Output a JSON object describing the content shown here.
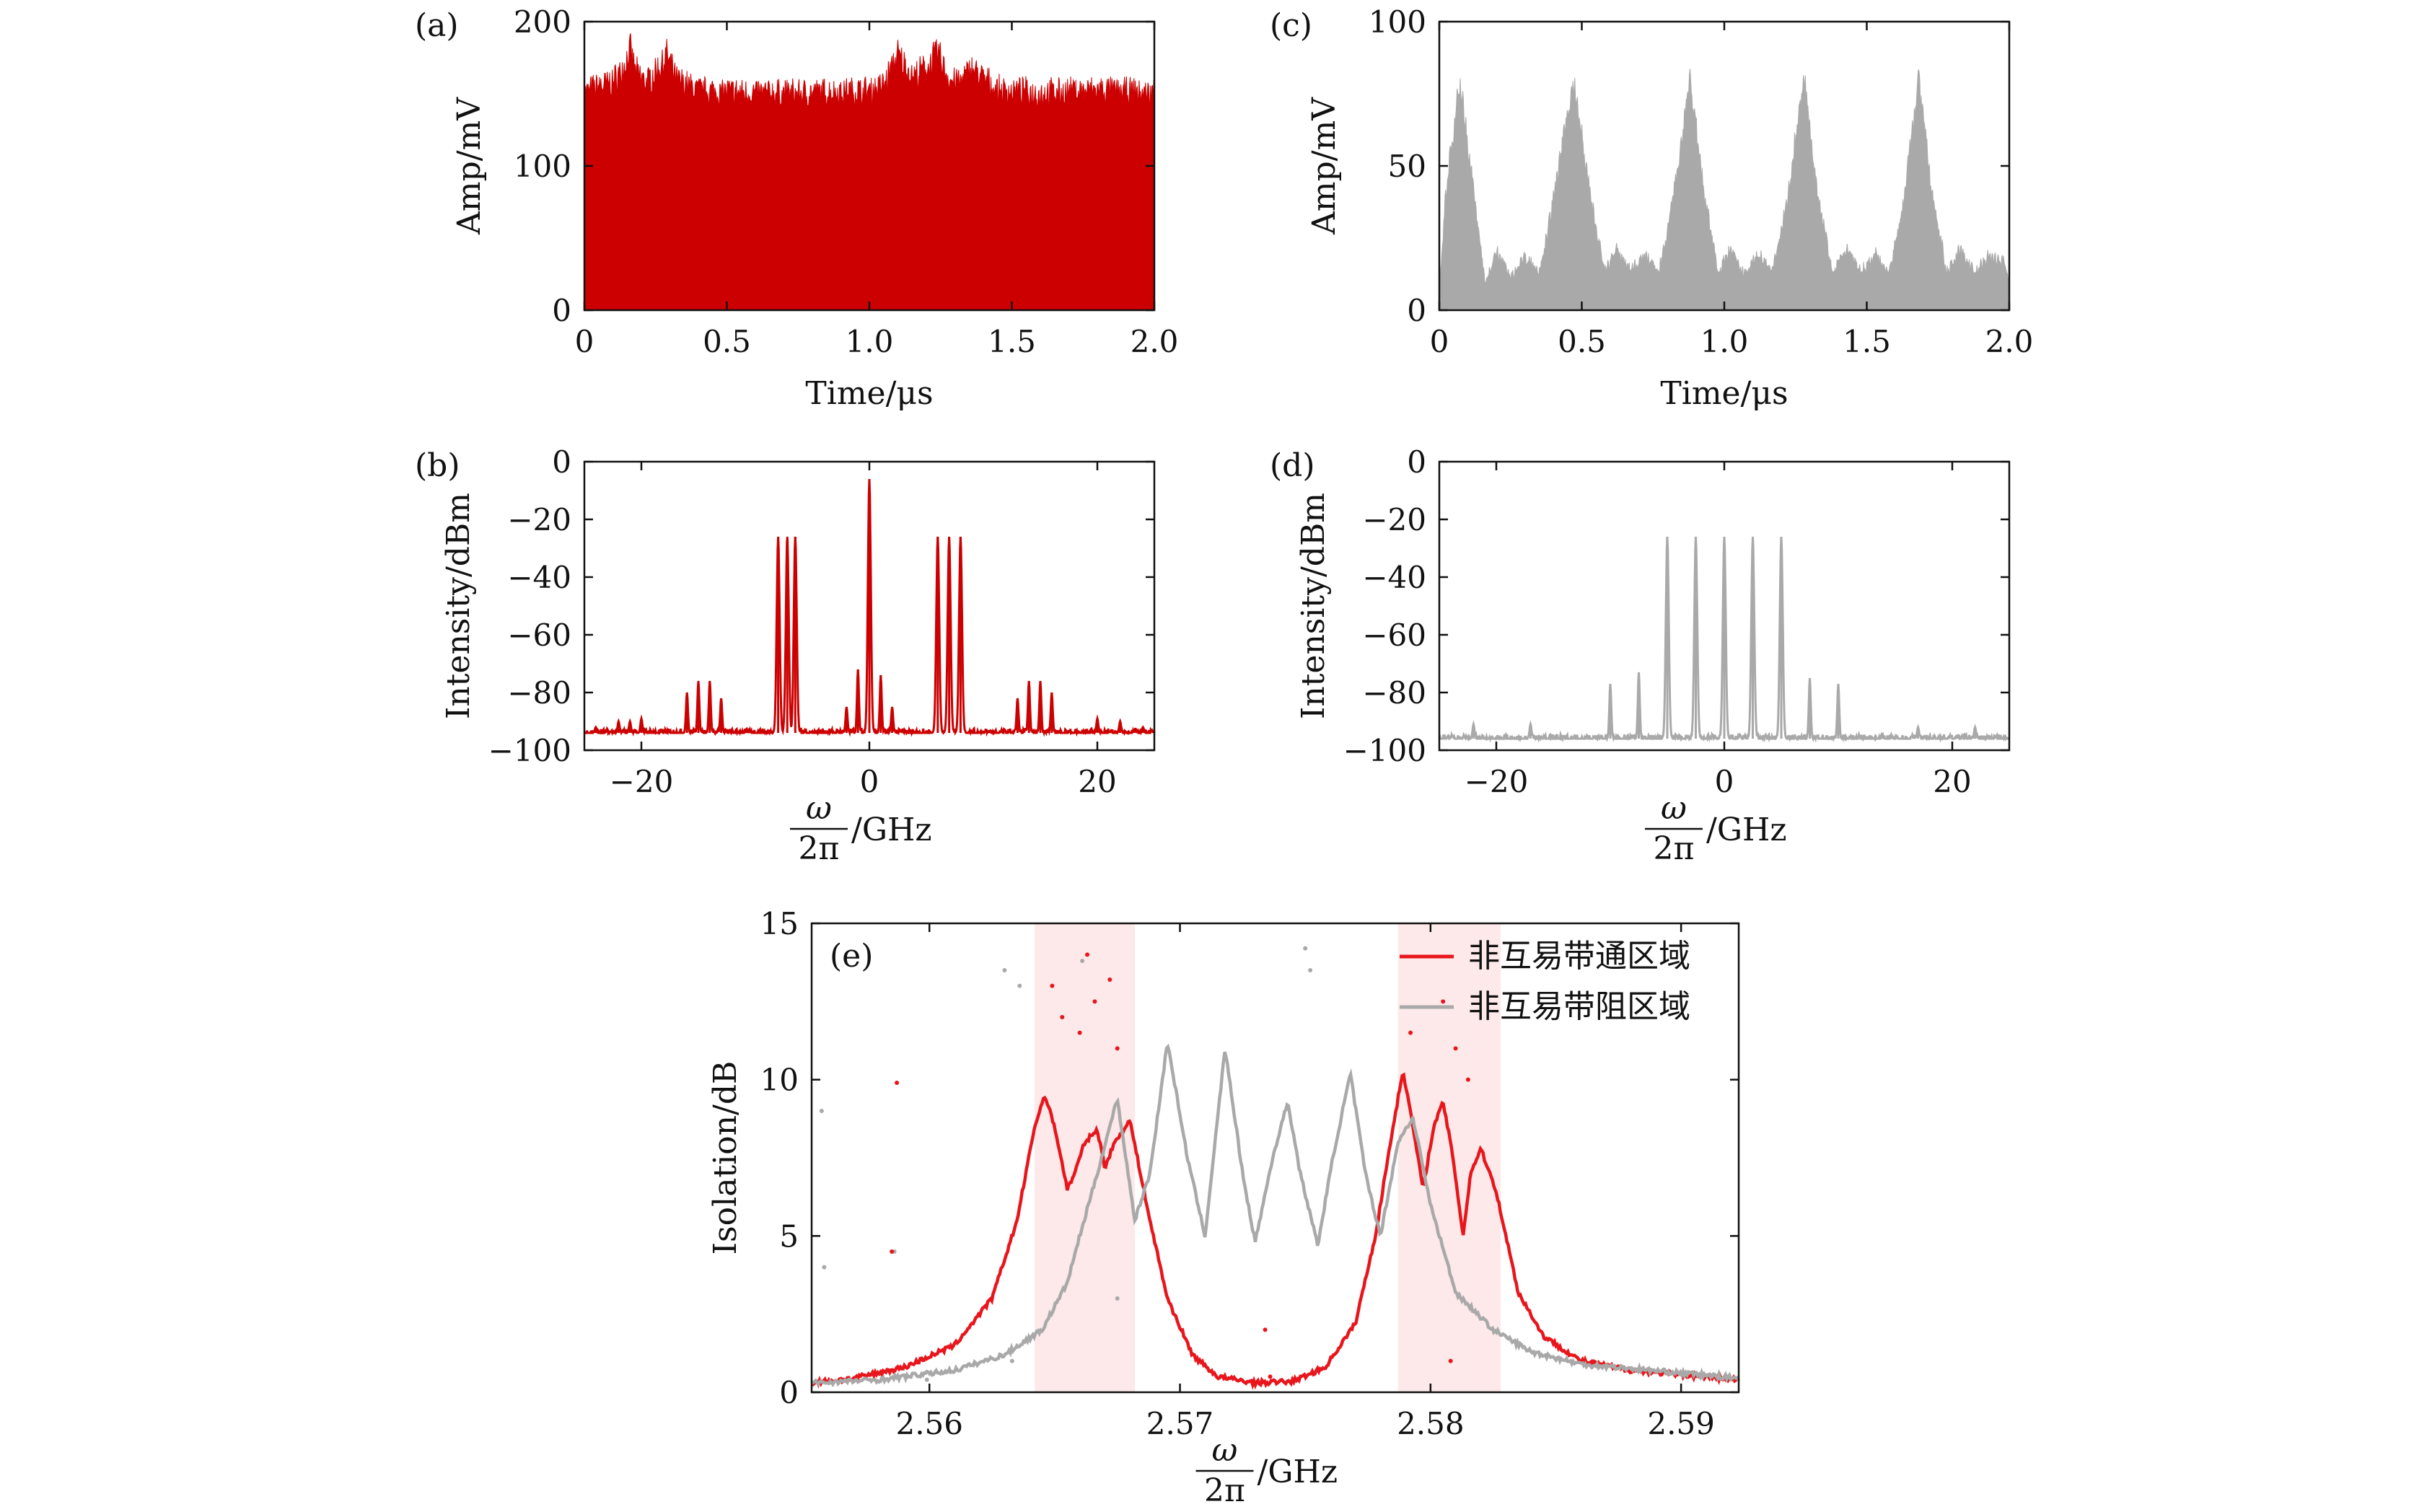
{
  "colors": {
    "red": "#cc0000",
    "red_line": "#e8161c",
    "gray": "#a9a9a9",
    "band": "#fde9e9"
  },
  "chart_data": [
    {
      "id": "a",
      "panel_label": "(a)",
      "type": "area",
      "xlabel": "Time/μs",
      "ylabel": "Amp/mV",
      "xlim": [
        0,
        2.0
      ],
      "ylim": [
        0,
        200
      ],
      "xticks": [
        0,
        0.5,
        1.0,
        1.5,
        2.0
      ],
      "xtick_labels": [
        "0",
        "0.5",
        "1.0",
        "1.5",
        "2.0"
      ],
      "yticks": [
        0,
        100,
        200
      ],
      "ytick_labels": [
        "0",
        "100",
        "200"
      ],
      "color": "#cc0000",
      "x": [
        0.0,
        0.05,
        0.1,
        0.14,
        0.16,
        0.18,
        0.22,
        0.26,
        0.29,
        0.32,
        0.4,
        0.6,
        0.8,
        1.0,
        1.05,
        1.1,
        1.15,
        1.2,
        1.24,
        1.28,
        1.32,
        1.36,
        1.45,
        1.6,
        1.8,
        1.98
      ],
      "y": [
        160,
        165,
        168,
        180,
        192,
        175,
        168,
        178,
        188,
        170,
        162,
        160,
        160,
        162,
        166,
        188,
        172,
        178,
        190,
        170,
        168,
        178,
        162,
        160,
        162,
        160
      ]
    },
    {
      "id": "b",
      "panel_label": "(b)",
      "type": "line",
      "xlabel_num": "ω",
      "xlabel_den": "2π",
      "xlabel_unit": "/GHz",
      "ylabel": "Intensity/dBm",
      "xlim": [
        -25,
        25
      ],
      "ylim": [
        -100,
        0
      ],
      "xticks": [
        -20,
        0,
        20
      ],
      "xtick_labels": [
        "−20",
        "0",
        "20"
      ],
      "yticks": [
        0,
        -20,
        -40,
        -60,
        -80,
        -100
      ],
      "ytick_labels": [
        "0",
        "−20",
        "−40",
        "−60",
        "−80",
        "−100"
      ],
      "color": "#cc0000",
      "noise_floor": -94,
      "peaks": [
        {
          "x": -24,
          "y": -92
        },
        {
          "x": -22,
          "y": -90
        },
        {
          "x": -21,
          "y": -90
        },
        {
          "x": -20,
          "y": -89
        },
        {
          "x": -16,
          "y": -80
        },
        {
          "x": -15,
          "y": -76
        },
        {
          "x": -14,
          "y": -76
        },
        {
          "x": -13,
          "y": -82
        },
        {
          "x": -8,
          "y": -26
        },
        {
          "x": -7.2,
          "y": -26
        },
        {
          "x": -6.5,
          "y": -26
        },
        {
          "x": -2,
          "y": -85
        },
        {
          "x": -1,
          "y": -72
        },
        {
          "x": 0,
          "y": -6
        },
        {
          "x": 1,
          "y": -74
        },
        {
          "x": 2,
          "y": -85
        },
        {
          "x": 6,
          "y": -26
        },
        {
          "x": 7,
          "y": -26
        },
        {
          "x": 8,
          "y": -26
        },
        {
          "x": 13,
          "y": -82
        },
        {
          "x": 14,
          "y": -76
        },
        {
          "x": 15,
          "y": -76
        },
        {
          "x": 16,
          "y": -80
        },
        {
          "x": 20,
          "y": -89
        },
        {
          "x": 22,
          "y": -90
        },
        {
          "x": 24,
          "y": -92
        }
      ]
    },
    {
      "id": "c",
      "panel_label": "(c)",
      "type": "area",
      "xlabel": "Time/μs",
      "ylabel": "Amp/mV",
      "xlim": [
        0,
        2.0
      ],
      "ylim": [
        0,
        100
      ],
      "xticks": [
        0,
        0.5,
        1.0,
        1.5,
        2.0
      ],
      "xtick_labels": [
        "0",
        "0.5",
        "1.0",
        "1.5",
        "2.0"
      ],
      "yticks": [
        0,
        50,
        100
      ],
      "ytick_labels": [
        "0",
        "50",
        "100"
      ],
      "color": "#a9a9a9",
      "x": [
        0.0,
        0.02,
        0.07,
        0.12,
        0.16,
        0.2,
        0.25,
        0.3,
        0.35,
        0.4,
        0.47,
        0.53,
        0.58,
        0.62,
        0.67,
        0.72,
        0.77,
        0.82,
        0.88,
        0.93,
        0.98,
        1.02,
        1.07,
        1.12,
        1.17,
        1.22,
        1.28,
        1.33,
        1.38,
        1.43,
        1.48,
        1.53,
        1.58,
        1.63,
        1.68,
        1.73,
        1.78,
        1.83,
        1.88,
        1.93,
        1.98,
        2.0
      ],
      "y": [
        5,
        40,
        85,
        45,
        10,
        22,
        12,
        20,
        14,
        40,
        85,
        42,
        14,
        22,
        15,
        20,
        14,
        40,
        86,
        42,
        14,
        22,
        14,
        20,
        14,
        40,
        86,
        42,
        14,
        22,
        14,
        20,
        14,
        40,
        86,
        42,
        14,
        22,
        14,
        20,
        18,
        12
      ]
    },
    {
      "id": "d",
      "panel_label": "(d)",
      "type": "line",
      "xlabel_num": "ω",
      "xlabel_den": "2π",
      "xlabel_unit": "/GHz",
      "ylabel": "Intensity/dBm",
      "xlim": [
        -25,
        25
      ],
      "ylim": [
        -100,
        0
      ],
      "xticks": [
        -20,
        0,
        20
      ],
      "xtick_labels": [
        "−20",
        "0",
        "20"
      ],
      "yticks": [
        0,
        -20,
        -40,
        -60,
        -80,
        -100
      ],
      "ytick_labels": [
        "0",
        "−20",
        "−40",
        "−60",
        "−80",
        "−100"
      ],
      "color": "#a9a9a9",
      "noise_floor": -96,
      "peaks": [
        {
          "x": -22,
          "y": -91
        },
        {
          "x": -17,
          "y": -91
        },
        {
          "x": -10,
          "y": -77
        },
        {
          "x": -7.5,
          "y": -73
        },
        {
          "x": -5,
          "y": -26
        },
        {
          "x": -2.5,
          "y": -26
        },
        {
          "x": 0,
          "y": -26
        },
        {
          "x": 2.5,
          "y": -26
        },
        {
          "x": 5,
          "y": -26
        },
        {
          "x": 7.5,
          "y": -75
        },
        {
          "x": 10,
          "y": -77
        },
        {
          "x": 17,
          "y": -92
        },
        {
          "x": 22,
          "y": -92
        }
      ]
    },
    {
      "id": "e",
      "panel_label": "(e)",
      "type": "line",
      "xlabel_num": "ω",
      "xlabel_den": "2π",
      "xlabel_unit": "/GHz",
      "ylabel": "Isolation/dB",
      "xlim": [
        2.5553,
        2.5923
      ],
      "ylim": [
        0,
        15
      ],
      "xticks": [
        2.56,
        2.57,
        2.58,
        2.59
      ],
      "xtick_labels": [
        "2.56",
        "2.57",
        "2.58",
        "2.59"
      ],
      "yticks": [
        0,
        5,
        10,
        15
      ],
      "ytick_labels": [
        "0",
        "5",
        "10",
        "15"
      ],
      "bands": [
        [
          2.5642,
          2.5682
        ],
        [
          2.5787,
          2.5828
        ]
      ],
      "legend": {
        "position": "top-right"
      },
      "series": [
        {
          "name": "非互易带通区域",
          "color": "#e8161c",
          "x": [
            2.5553,
            2.557,
            2.559,
            2.561,
            2.5625,
            2.5635,
            2.5642,
            2.5646,
            2.565,
            2.5655,
            2.5658,
            2.5662,
            2.5667,
            2.567,
            2.5674,
            2.568,
            2.5688,
            2.5695,
            2.5705,
            2.5715,
            2.573,
            2.5745,
            2.5758,
            2.577,
            2.5778,
            2.5784,
            2.5789,
            2.5793,
            2.5797,
            2.5801,
            2.5805,
            2.5809,
            2.5813,
            2.5816,
            2.582,
            2.5826,
            2.5835,
            2.5845,
            2.586,
            2.588,
            2.5923
          ],
          "y": [
            0.3,
            0.45,
            0.8,
            1.5,
            3.0,
            5.5,
            8.5,
            9.5,
            8.5,
            6.5,
            7.0,
            8.0,
            8.4,
            7.2,
            8.0,
            8.7,
            5.5,
            3.0,
            1.2,
            0.5,
            0.3,
            0.35,
            0.8,
            2.2,
            5.0,
            8.0,
            10.3,
            8.5,
            6.5,
            8.4,
            9.3,
            7.5,
            5.0,
            7.0,
            7.8,
            6.5,
            3.2,
            1.8,
            1.0,
            0.7,
            0.4
          ]
        },
        {
          "name": "非互易带阻区域",
          "color": "#a9a9a9",
          "x": [
            2.5553,
            2.558,
            2.561,
            2.563,
            2.5645,
            2.5655,
            2.566,
            2.5667,
            2.5675,
            2.5682,
            2.5688,
            2.5695,
            2.5703,
            2.571,
            2.5718,
            2.5725,
            2.573,
            2.5737,
            2.5743,
            2.5748,
            2.5755,
            2.5761,
            2.5768,
            2.5774,
            2.578,
            2.5787,
            2.5793,
            2.58,
            2.581,
            2.5825,
            2.584,
            2.586,
            2.5923
          ],
          "y": [
            0.3,
            0.4,
            0.7,
            1.2,
            2.0,
            3.5,
            5.0,
            7.0,
            9.4,
            5.5,
            7.0,
            11.2,
            7.5,
            5.0,
            11.0,
            7.0,
            4.8,
            7.5,
            9.3,
            7.0,
            4.7,
            7.5,
            10.2,
            7.0,
            5.0,
            8.0,
            8.8,
            6.0,
            3.2,
            2.0,
            1.3,
            0.9,
            0.45
          ]
        }
      ],
      "scatter": [
        {
          "color": "#a9a9a9",
          "x": [
            2.5557,
            2.5558,
            2.5586,
            2.563,
            2.5633,
            2.5636,
            2.5661,
            2.575,
            2.5752,
            2.5675,
            2.5599
          ],
          "y": [
            9.0,
            4.0,
            4.5,
            13.5,
            1.0,
            13.0,
            13.8,
            14.2,
            13.5,
            3.0,
            0.4
          ]
        },
        {
          "color": "#e8161c",
          "x": [
            2.5587,
            2.5585,
            2.5649,
            2.5653,
            2.566,
            2.5663,
            2.5666,
            2.5672,
            2.5675,
            2.5734,
            2.5736,
            2.5792,
            2.5805,
            2.5808,
            2.581,
            2.5815
          ],
          "y": [
            9.9,
            4.5,
            13.0,
            12.0,
            11.5,
            14.0,
            12.5,
            13.2,
            11.0,
            2.0,
            0.5,
            11.5,
            12.5,
            1.0,
            11.0,
            10.0
          ]
        }
      ]
    }
  ]
}
